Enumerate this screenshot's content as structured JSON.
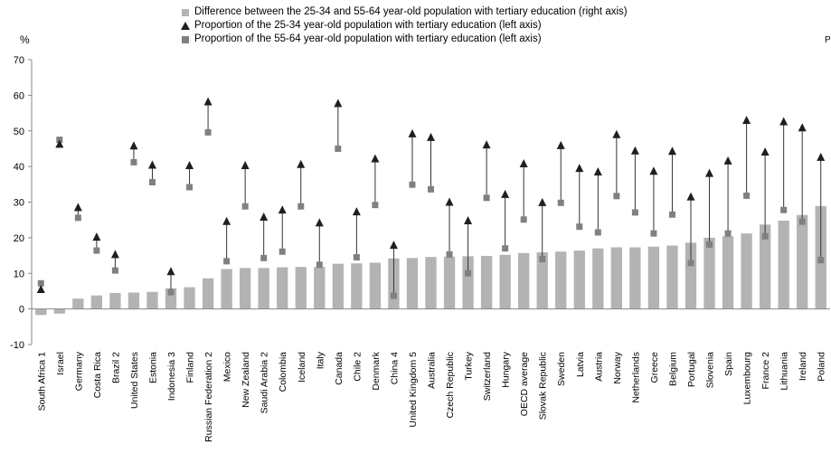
{
  "legend": {
    "bar_label": "Difference between the 25-34 and 55-64 year-old population with tertiary education (right axis)",
    "young_label": "Proportion of the 25-34 year-old population with tertiary education (left axis)",
    "old_label": "Proportion of the 55-64 year-old population with tertiary education (left axis)"
  },
  "axis": {
    "left_unit": "%",
    "right_unit": "P"
  },
  "colors": {
    "bar": "#b3b3b3",
    "triangle": "#1f1f1f",
    "square": "#808080",
    "connector": "#333333",
    "axis": "#888888"
  },
  "chart_data": {
    "type": "bar",
    "title": "",
    "ylabel": "%",
    "ylim": [
      -10,
      70
    ],
    "yticks": [
      -10,
      0,
      10,
      20,
      30,
      40,
      50,
      60,
      70
    ],
    "grid": false,
    "legend_position": "top",
    "categories": [
      "South Africa 1",
      "Israel",
      "Germany",
      "Costa Rica",
      "Brazil 2",
      "United States",
      "Estonia",
      "Indonesia 3",
      "Finland",
      "Russian Federation 2",
      "Mexico",
      "New Zealand",
      "Saudi Arabia 2",
      "Colombia",
      "Iceland",
      "Italy",
      "Canada",
      "Chile 2",
      "Denmark",
      "China 4",
      "United Kingdom 5",
      "Australia",
      "Czech Republic",
      "Turkey",
      "Switzerland",
      "Hungary",
      "OECD average",
      "Slovak Republic",
      "Sweden",
      "Latvia",
      "Austria",
      "Norway",
      "Netherlands",
      "Greece",
      "Belgium",
      "Portugal",
      "Slovenia",
      "Spain",
      "Luxembourg",
      "France 2",
      "Lithuania",
      "Ireland",
      "Poland"
    ],
    "series": [
      {
        "name": "Difference between the 25-34 and 55-64 year-old population with tertiary education (right axis)",
        "kind": "bar",
        "values": [
          -1.7,
          -1.3,
          2.9,
          3.8,
          4.5,
          4.6,
          4.8,
          5.8,
          6.1,
          8.6,
          11.2,
          11.5,
          11.5,
          11.7,
          11.8,
          11.8,
          12.7,
          12.8,
          13.0,
          14.2,
          14.3,
          14.6,
          14.7,
          14.8,
          14.9,
          15.2,
          15.7,
          15.9,
          16.1,
          16.4,
          17.0,
          17.3,
          17.3,
          17.5,
          17.8,
          18.6,
          20.0,
          20.4,
          21.2,
          23.7,
          24.8,
          26.4,
          28.9
        ]
      },
      {
        "name": "Proportion of the 25-34 year-old population with tertiary education (left axis)",
        "kind": "triangle",
        "values": [
          5.5,
          46.3,
          28.5,
          20.2,
          15.3,
          45.8,
          40.4,
          10.5,
          40.3,
          58.2,
          24.6,
          40.3,
          25.8,
          27.8,
          40.6,
          24.2,
          57.7,
          27.3,
          42.2,
          17.9,
          49.2,
          48.2,
          30.0,
          24.8,
          46.1,
          32.2,
          40.8,
          29.9,
          45.9,
          39.5,
          38.5,
          49.0,
          44.4,
          38.7,
          44.3,
          31.5,
          38.1,
          41.6,
          53.0,
          44.1,
          52.6,
          50.9,
          42.6
        ]
      },
      {
        "name": "Proportion of the 55-64 year-old population with tertiary education (left axis)",
        "kind": "square",
        "values": [
          7.2,
          47.5,
          25.6,
          16.4,
          10.8,
          41.2,
          35.6,
          4.7,
          34.2,
          49.6,
          13.4,
          28.8,
          14.3,
          16.1,
          28.8,
          12.4,
          45.0,
          14.5,
          29.2,
          3.7,
          34.9,
          33.6,
          15.3,
          10.0,
          31.2,
          17.0,
          25.1,
          14.0,
          29.8,
          23.1,
          21.5,
          31.7,
          27.1,
          21.2,
          26.5,
          12.9,
          18.1,
          21.2,
          31.8,
          20.4,
          27.8,
          24.5,
          13.7
        ]
      }
    ]
  }
}
